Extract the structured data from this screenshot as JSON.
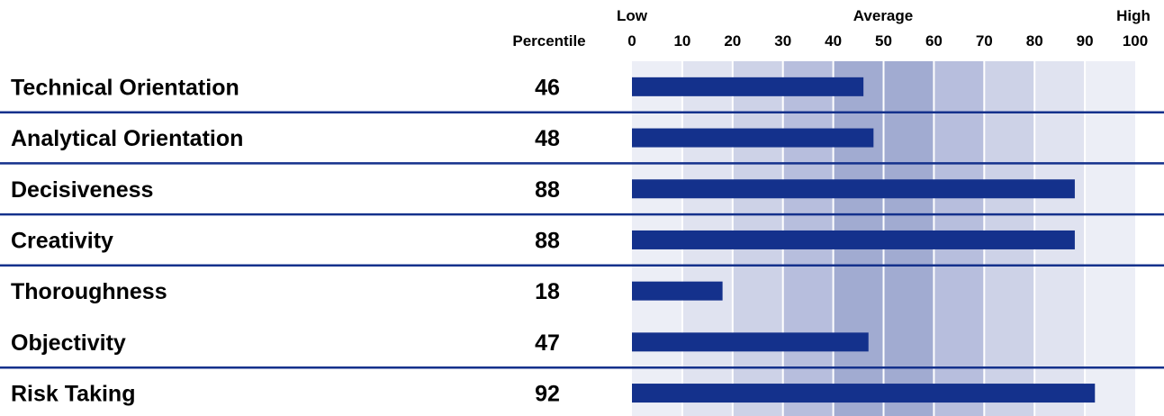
{
  "chart_data": {
    "type": "bar",
    "orientation": "horizontal",
    "column_header": "Percentile",
    "range_labels": {
      "low": "Low",
      "average": "Average",
      "high": "High"
    },
    "xlim": [
      0,
      100
    ],
    "ticks": [
      "0",
      "10",
      "20",
      "30",
      "40",
      "50",
      "60",
      "70",
      "80",
      "90",
      "100"
    ],
    "categories": [
      "Technical Orientation",
      "Analytical Orientation",
      "Decisiveness",
      "Creativity",
      "Thoroughness",
      "Objectivity",
      "Risk Taking"
    ],
    "values": [
      46,
      48,
      88,
      88,
      18,
      47,
      92
    ],
    "value_labels": [
      "46",
      "48",
      "88",
      "88",
      "18",
      "47",
      "92"
    ],
    "row_dividers_after": [
      0,
      1,
      2,
      3,
      5
    ],
    "band_colors": [
      "#eceef6",
      "#e0e3f0",
      "#cdd2e7",
      "#b7bedd",
      "#a1abd1",
      "#a1abd1",
      "#b7bedd",
      "#cdd2e7",
      "#e0e3f0",
      "#eceef6"
    ],
    "bar_color": "#14318c",
    "divider_color": "#14318c"
  }
}
